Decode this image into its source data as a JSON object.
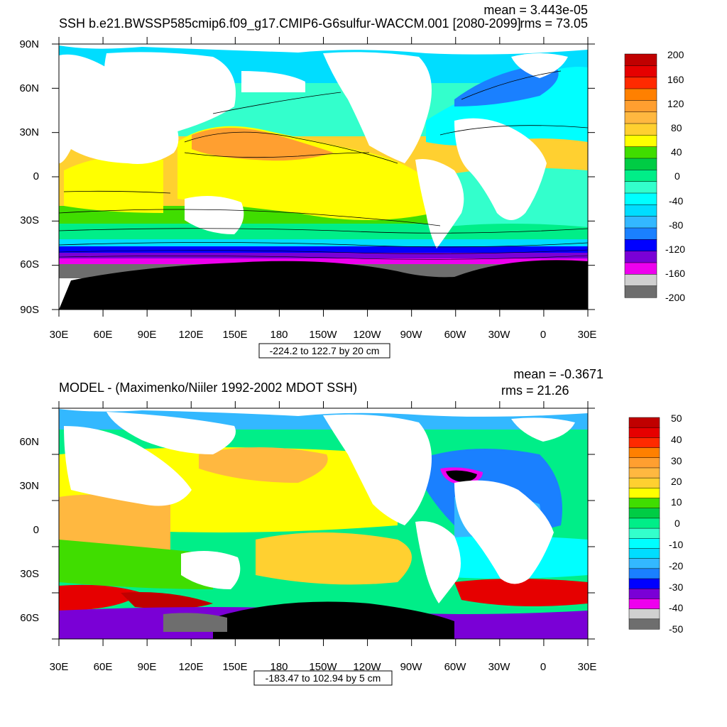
{
  "chart_data": [
    {
      "type": "heatmap",
      "title": "SSH b.e21.BWSSP585cmip6.f09_g17.CMIP6-G6sulfur-WACCM.001 [2080-2099]",
      "stats": {
        "mean": "mean = 3.443e-05",
        "rms": "rms = 73.05"
      },
      "x_ticks": [
        "30E",
        "60E",
        "90E",
        "120E",
        "150E",
        "180",
        "150W",
        "120W",
        "90W",
        "60W",
        "30W",
        "0",
        "30E"
      ],
      "y_ticks": [
        "90N",
        "60N",
        "30N",
        "0",
        "30S",
        "60S",
        "90S"
      ],
      "contour_info": "-224.2 to 122.7 by 20 cm",
      "colorbar": {
        "labels": [
          "200",
          "160",
          "120",
          "80",
          "40",
          "0",
          "-40",
          "-80",
          "-120",
          "-160",
          "-200"
        ],
        "colors": [
          "#c00000",
          "#e60000",
          "#ff2a00",
          "#ff8000",
          "#ff9f30",
          "#ffb840",
          "#ffd030",
          "#ffff00",
          "#40dd00",
          "#00cc44",
          "#00ee88",
          "#33ffcc",
          "#00ffff",
          "#00ddff",
          "#33b8ff",
          "#1a80ff",
          "#0000ff",
          "#7a00d6",
          "#ee00ee",
          "#d0d0d0",
          "#6e6e6e"
        ]
      }
    },
    {
      "type": "heatmap",
      "title": "MODEL - (Maximenko/Niiler 1992-2002 MDOT SSH)",
      "stats": {
        "mean": "mean = -0.3671",
        "rms": "rms = 21.26"
      },
      "x_ticks": [
        "30E",
        "60E",
        "90E",
        "120E",
        "150E",
        "180",
        "150W",
        "120W",
        "90W",
        "60W",
        "30W",
        "0",
        "30E"
      ],
      "y_ticks": [
        "60N",
        "30N",
        "0",
        "30S",
        "60S"
      ],
      "contour_info": "-183.47 to 102.94 by 5 cm",
      "colorbar": {
        "labels": [
          "50",
          "40",
          "30",
          "20",
          "10",
          "0",
          "-10",
          "-20",
          "-30",
          "-40",
          "-50"
        ],
        "colors": [
          "#c00000",
          "#e60000",
          "#ff2a00",
          "#ff8000",
          "#ff9f30",
          "#ffb840",
          "#ffd030",
          "#ffff00",
          "#40dd00",
          "#00cc44",
          "#00ee88",
          "#33ffcc",
          "#00ffff",
          "#00ddff",
          "#33b8ff",
          "#1a80ff",
          "#0000ff",
          "#7a00d6",
          "#ee00ee",
          "#d0d0d0",
          "#6e6e6e"
        ]
      }
    }
  ]
}
